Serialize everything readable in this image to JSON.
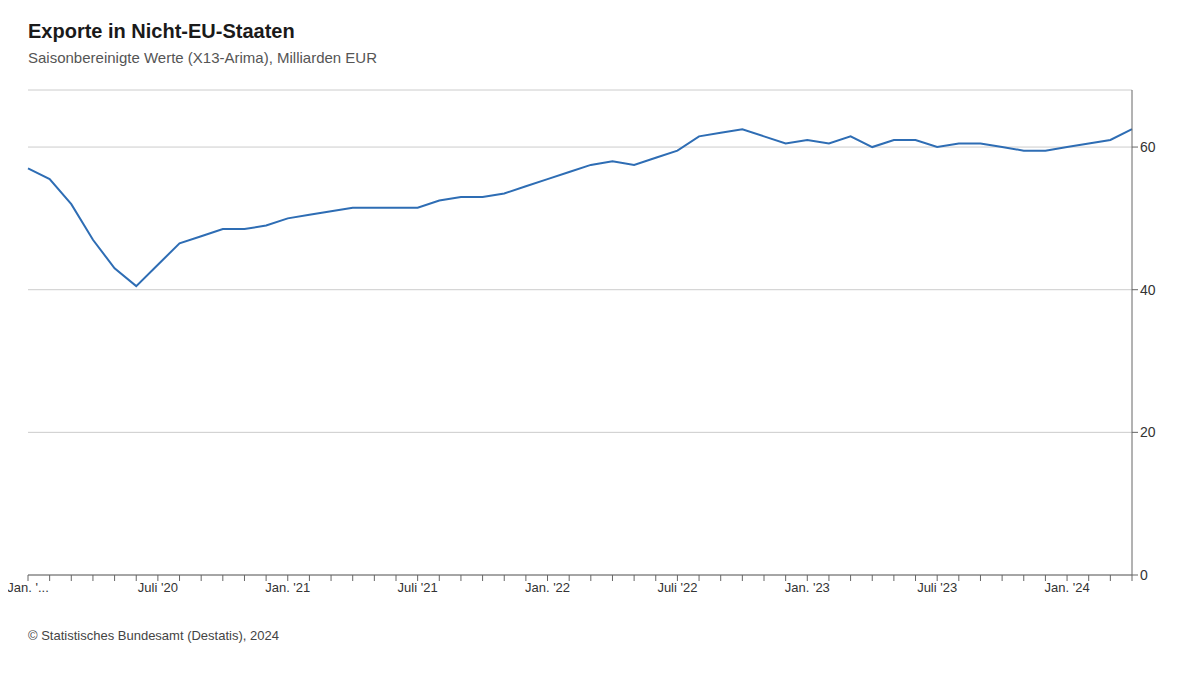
{
  "chart_data": {
    "type": "line",
    "title": "Exporte in Nicht-EU-Staaten",
    "subtitle": "Saisonbereinigte Werte (X13-Arima), Milliarden EUR",
    "footer": "© Statistisches Bundesamt (Destatis), 2024",
    "categories": [
      "Jan. '...",
      null,
      null,
      null,
      null,
      null,
      "Juli '20",
      null,
      null,
      null,
      null,
      null,
      "Jan. '21",
      null,
      null,
      null,
      null,
      null,
      "Juli '21",
      null,
      null,
      null,
      null,
      null,
      "Jan. '22",
      null,
      null,
      null,
      null,
      null,
      "Juli '22",
      null,
      null,
      null,
      null,
      null,
      "Jan. '23",
      null,
      null,
      null,
      null,
      null,
      "Juli '23",
      null,
      null,
      null,
      null,
      null,
      "Jan. '24",
      null,
      null,
      null
    ],
    "values": [
      57.0,
      55.5,
      52.0,
      47.0,
      43.0,
      40.5,
      43.5,
      46.5,
      47.5,
      48.5,
      48.5,
      49.0,
      50.0,
      50.5,
      51.0,
      51.5,
      51.5,
      51.5,
      51.5,
      52.5,
      53.0,
      53.0,
      53.5,
      54.5,
      55.5,
      56.5,
      57.5,
      58.0,
      57.5,
      58.5,
      59.5,
      61.5,
      62.0,
      62.5,
      61.5,
      60.5,
      61.0,
      60.5,
      61.5,
      60.0,
      61.0,
      61.0,
      60.0,
      60.5,
      60.5,
      60.0,
      59.5,
      59.5,
      60.0,
      60.5,
      61.0,
      62.5
    ],
    "color": "#2e6db4",
    "ylim": [
      0,
      68
    ],
    "yticks": [
      0,
      20,
      40,
      60
    ],
    "grid": true
  }
}
